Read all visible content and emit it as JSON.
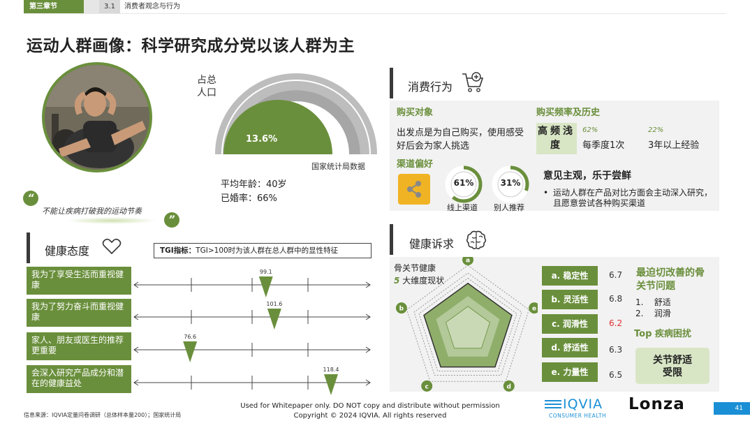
{
  "header": {
    "chapter_tag": "第三章节",
    "section_num": "3.1",
    "section_name": "消费者观念与行为"
  },
  "title": "运动人群画像：科学研究成分党以该人群为主",
  "profile": {
    "quote": "不能让疾病打破我的运动节奏",
    "quote_open": "“",
    "quote_close": "”"
  },
  "population": {
    "label": "占总人口",
    "percent_text": "13.6%",
    "percent": 0.136,
    "source": "国家统计局数据",
    "avg_age": "平均年龄：40岁",
    "married": "已婚率：66%"
  },
  "consumption": {
    "heading": "消费行为",
    "purchase_target_title": "购买对象",
    "purchase_target_text": "出发点是为自己购买，使用感受好后会为家人挑选",
    "freq_title": "购买频率及历史",
    "freq_box": "高频浅度",
    "freq_items": [
      {
        "pct": "62%",
        "label": "每季度1次"
      },
      {
        "pct": "22%",
        "label": "3年以上经验"
      }
    ],
    "channel_title": "渠道偏好",
    "channels": [
      {
        "value": "61%",
        "fraction": 0.61,
        "label": "线上渠道"
      },
      {
        "value": "31%",
        "fraction": 0.31,
        "label": "别人推荐"
      }
    ],
    "opinion_title": "意见主观，乐于尝鲜",
    "opinion_bullet": "运动人群在产品对比方面会主动深入研究，且愿意尝试各种购买渠道"
  },
  "health_attitude": {
    "heading": "健康态度",
    "tgi_note_bold": "TGI指标：",
    "tgi_note": "TGI>100时为该人群在总人群中的显性特征",
    "rows": [
      {
        "label": "我为了享受生活而重视健康",
        "value": 99.1,
        "value_text": "99.1"
      },
      {
        "label": "我为了努力奋斗而重视健康",
        "value": 101.6,
        "value_text": "101.6"
      },
      {
        "label": "家人、朋友或医生的推荐更重要",
        "value": 76.6,
        "value_text": "76.6"
      },
      {
        "label": "会深入研究产品成分和潜在的健康益处",
        "value": 118.4,
        "value_text": "118.4"
      }
    ]
  },
  "health_demand": {
    "heading": "健康诉求",
    "radar_title_1": "骨关节健康",
    "radar_title_2_num": "5",
    "radar_title_2_text": "大维度现状",
    "axes": [
      "a",
      "b",
      "c",
      "d",
      "e"
    ],
    "dimensions": [
      {
        "label": "a. 稳定性",
        "score": "6.7",
        "value": 6.7,
        "color": "#333333"
      },
      {
        "label": "b. 灵活性",
        "score": "6.8",
        "value": 6.8,
        "color": "#333333"
      },
      {
        "label": "c. 润滑性",
        "score": "6.2",
        "value": 6.2,
        "color": "#e03030"
      },
      {
        "label": "d. 舒适性",
        "score": "6.3",
        "value": 6.3,
        "color": "#333333"
      },
      {
        "label": "e. 力量性",
        "score": "6.5",
        "value": 6.5,
        "color": "#333333"
      }
    ],
    "urgent_title": "最迫切改善的骨关节问题",
    "urgent_items": [
      "舒适",
      "润滑"
    ],
    "top_title": "Top 疾病困扰",
    "top_item": "关节舒适受限"
  },
  "footer": {
    "source": "信息来源：IQVIA定量问卷调研（总体样本量200）；国家统计局",
    "notice_1": "Used for Whitepaper only. DO NOT copy and distribute without permission",
    "notice_2": "Copyright © 2024 IQVIA. All rights reserved",
    "logo_iqvia": "IQVIA",
    "logo_iqvia_sub": "CONSUMER HEALTH",
    "logo_lonza": "Lonza",
    "page_number": "41"
  },
  "colors": {
    "accent": "#6a8f3c",
    "light_green": "#d9e6c6",
    "panel": "#f2f2f2",
    "page_tag": "#1a8fd6"
  }
}
